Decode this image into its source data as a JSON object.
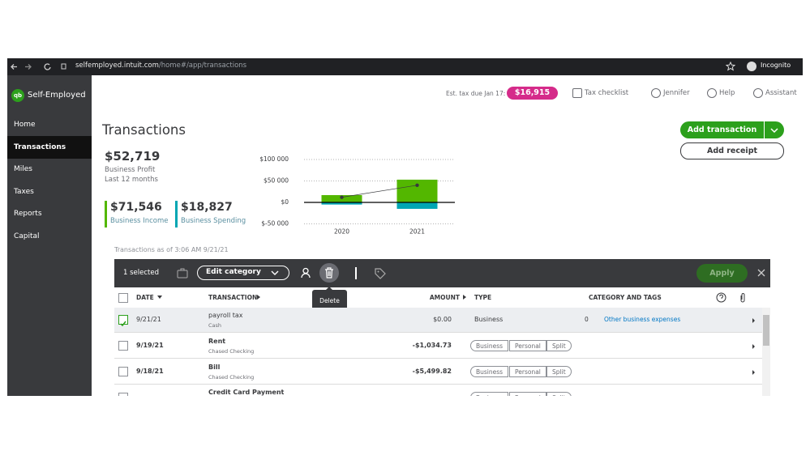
{
  "browser": {
    "url_host": "selfemployed.intuit.com",
    "url_path": "/home#/app/transactions",
    "profile": "Incognito"
  },
  "sidebar": {
    "logo": "qb",
    "brand": "Self-Employed",
    "nav": [
      "Home",
      "Transactions",
      "Miles",
      "Taxes",
      "Reports",
      "Capital"
    ]
  },
  "header": {
    "tax_due_label": "Est. tax due Jan 17:",
    "tax_due": "$16,915",
    "links": [
      "Tax checklist",
      "Jennifer",
      "Help",
      "Assistant"
    ]
  },
  "title": "Transactions",
  "summary": {
    "profit": "$52,719",
    "period": "Last 12 months",
    "income": "$71,546",
    "spending": "$18,827"
  },
  "buttons": {
    "add_transaction": "Add transaction",
    "add_receipt": "Add receipt"
  },
  "as_of": "Transactions as of 3:06 AM 9/21/21",
  "toolbar": {
    "selected": "1 selected",
    "edit_category": "Edit category",
    "apply": "Apply",
    "tooltip": "Delete"
  },
  "table": {
    "columns": [
      "DATE",
      "TRANSACTION",
      "AMOUNT",
      "TYPE",
      "CATEGORY AND TAGS"
    ],
    "type_options": [
      "Business",
      "Personal",
      "Split"
    ],
    "rows": [
      {
        "date": "9/21/21",
        "name": "payroll tax",
        "account": "Cash",
        "amount": "$0.00",
        "type": "Business",
        "tags": "0",
        "category": "Other business expenses"
      },
      {
        "date": "9/19/21",
        "name": "Rent",
        "account": "Chased Checking",
        "amount": "-$1,034.73"
      },
      {
        "date": "9/18/21",
        "name": "Bill",
        "account": "Chased Checking",
        "amount": "-$5,499.82"
      },
      {
        "name": "Credit Card Payment"
      }
    ]
  },
  "chart_data": {
    "type": "bar",
    "categories": [
      "2020",
      "2021"
    ],
    "series": [
      {
        "name": "Business Income",
        "color": "#53b700",
        "values": [
          17000,
          53000
        ]
      },
      {
        "name": "Business Spending",
        "color": "#00a6b3",
        "values": [
          -5000,
          -15000
        ]
      },
      {
        "name": "Business Profit",
        "type": "line",
        "color": "#393a3d",
        "values": [
          12000,
          40000
        ]
      }
    ],
    "ylim": [
      -50000,
      100000
    ],
    "yticks": [
      {
        "value": -50000,
        "label": "$-50 000"
      },
      {
        "value": 0,
        "label": "$0"
      },
      {
        "value": 50000,
        "label": "$50 000"
      },
      {
        "value": 100000,
        "label": "$100 000"
      }
    ],
    "grid": true
  }
}
